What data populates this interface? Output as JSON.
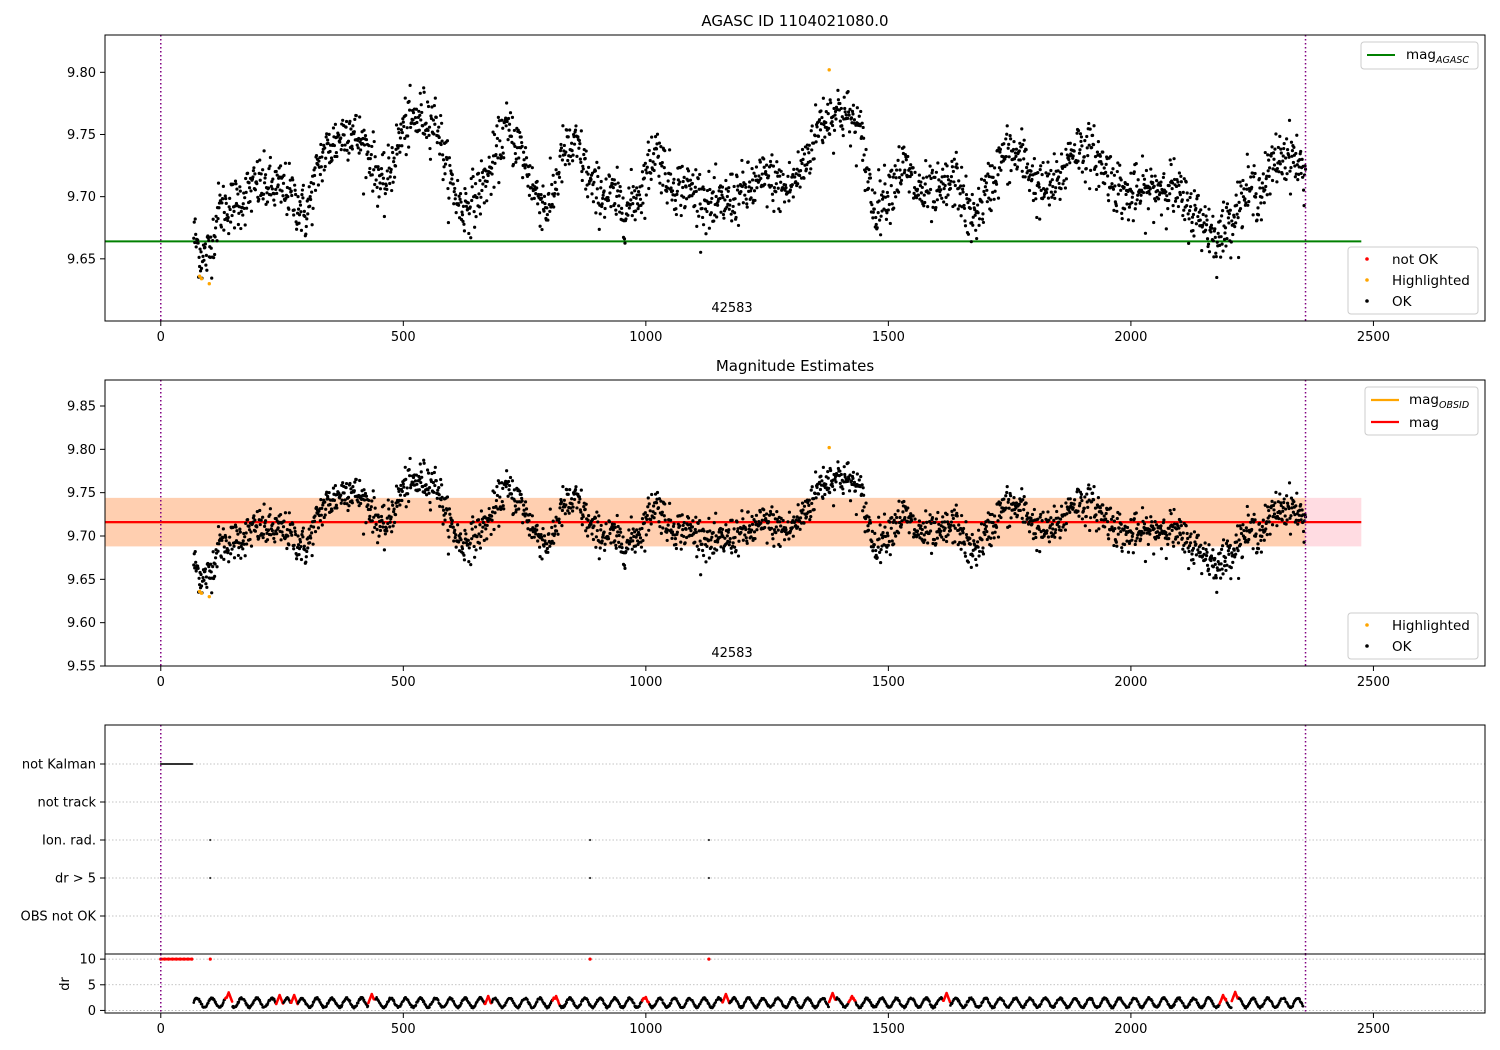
{
  "chart_data": [
    {
      "type": "scatter",
      "title": "AGASC ID 1104021080.0",
      "obsid_label": "42583",
      "xlim": [
        -115,
        2730
      ],
      "ylim": [
        9.6,
        9.83
      ],
      "xticks": [
        0,
        500,
        1000,
        1500,
        2000,
        2500
      ],
      "yticks": [
        9.65,
        9.7,
        9.75,
        9.8
      ],
      "ytick_labels": [
        "9.65",
        "9.70",
        "9.75",
        "9.80"
      ],
      "obs_boundaries": [
        0,
        2360
      ],
      "lines": [
        {
          "name": "mag_AGASC",
          "label_main": "mag",
          "label_sub": "AGASC",
          "y": 9.664,
          "x_range": [
            -115,
            2475
          ],
          "color": "#008000"
        }
      ],
      "series": [
        {
          "name": "not OK",
          "color": "#ff0000",
          "points": []
        },
        {
          "name": "Highlighted",
          "color": "#ffa500",
          "points": [
            [
              80,
              9.636
            ],
            [
              84,
              9.634
            ],
            [
              100,
              9.63
            ],
            [
              1378,
              9.802
            ]
          ]
        },
        {
          "name": "OK",
          "color": "#000000",
          "trend": [
            [
              68,
              9.67
            ],
            [
              85,
              9.65
            ],
            [
              100,
              9.655
            ],
            [
              120,
              9.69
            ],
            [
              160,
              9.695
            ],
            [
              200,
              9.71
            ],
            [
              260,
              9.705
            ],
            [
              300,
              9.685
            ],
            [
              330,
              9.73
            ],
            [
              360,
              9.745
            ],
            [
              390,
              9.755
            ],
            [
              430,
              9.735
            ],
            [
              460,
              9.705
            ],
            [
              500,
              9.755
            ],
            [
              540,
              9.765
            ],
            [
              570,
              9.76
            ],
            [
              590,
              9.72
            ],
            [
              620,
              9.69
            ],
            [
              650,
              9.7
            ],
            [
              680,
              9.72
            ],
            [
              710,
              9.755
            ],
            [
              740,
              9.74
            ],
            [
              770,
              9.705
            ],
            [
              800,
              9.69
            ],
            [
              830,
              9.735
            ],
            [
              860,
              9.74
            ],
            [
              890,
              9.705
            ],
            [
              930,
              9.7
            ],
            [
              960,
              9.69
            ],
            [
              990,
              9.705
            ],
            [
              1020,
              9.74
            ],
            [
              1050,
              9.71
            ],
            [
              1100,
              9.705
            ],
            [
              1140,
              9.69
            ],
            [
              1180,
              9.7
            ],
            [
              1210,
              9.705
            ],
            [
              1250,
              9.715
            ],
            [
              1290,
              9.705
            ],
            [
              1320,
              9.72
            ],
            [
              1360,
              9.76
            ],
            [
              1400,
              9.77
            ],
            [
              1440,
              9.755
            ],
            [
              1470,
              9.69
            ],
            [
              1500,
              9.705
            ],
            [
              1530,
              9.725
            ],
            [
              1560,
              9.705
            ],
            [
              1600,
              9.7
            ],
            [
              1640,
              9.715
            ],
            [
              1670,
              9.68
            ],
            [
              1700,
              9.7
            ],
            [
              1740,
              9.735
            ],
            [
              1780,
              9.73
            ],
            [
              1810,
              9.705
            ],
            [
              1850,
              9.71
            ],
            [
              1880,
              9.74
            ],
            [
              1920,
              9.735
            ],
            [
              1950,
              9.72
            ],
            [
              1990,
              9.7
            ],
            [
              2040,
              9.705
            ],
            [
              2080,
              9.71
            ],
            [
              2110,
              9.695
            ],
            [
              2150,
              9.68
            ],
            [
              2180,
              9.665
            ],
            [
              2210,
              9.685
            ],
            [
              2240,
              9.705
            ],
            [
              2270,
              9.705
            ],
            [
              2300,
              9.73
            ],
            [
              2330,
              9.735
            ],
            [
              2360,
              9.715
            ]
          ],
          "scatter": 0.018
        }
      ],
      "legend": {
        "lines_position": "top-right",
        "markers_position": "bottom-right"
      }
    },
    {
      "type": "scatter",
      "title": "Magnitude Estimates",
      "obsid_label": "42583",
      "xlim": [
        -115,
        2730
      ],
      "ylim": [
        9.55,
        9.88
      ],
      "xticks": [
        0,
        500,
        1000,
        1500,
        2000,
        2500
      ],
      "yticks": [
        9.55,
        9.6,
        9.65,
        9.7,
        9.75,
        9.8,
        9.85
      ],
      "ytick_labels": [
        "9.55",
        "9.60",
        "9.65",
        "9.70",
        "9.75",
        "9.80",
        "9.85"
      ],
      "obs_boundaries": [
        0,
        2360
      ],
      "lines": [
        {
          "name": "mag_OBSID",
          "label_main": "mag",
          "label_sub": "OBSID",
          "y": 9.716,
          "x_range": [
            -115,
            2360
          ],
          "band": [
            9.688,
            9.744
          ],
          "color": "#ffa500"
        },
        {
          "name": "mag",
          "label_main": "mag",
          "label_sub": "",
          "y": 9.716,
          "x_range": [
            -115,
            2475
          ],
          "band": [
            9.688,
            9.744
          ],
          "color": "#ff0000"
        }
      ],
      "series": [
        {
          "name": "Highlighted",
          "color": "#ffa500"
        },
        {
          "name": "OK",
          "color": "#000000"
        }
      ],
      "legend": {
        "lines_position": "top-right",
        "markers_position": "bottom-right"
      }
    },
    {
      "type": "scatter",
      "xlim": [
        -115,
        2730
      ],
      "categories": [
        "not Kalman",
        "not track",
        "Ion. rad.",
        "dr > 5",
        "OBS not OK"
      ],
      "flags": [
        {
          "category": "not Kalman",
          "x_range": [
            0,
            65
          ]
        },
        {
          "category": "Ion. rad.",
          "x": [
            102,
            885,
            1130
          ]
        },
        {
          "category": "dr > 5",
          "x": [
            102,
            885,
            1130
          ]
        }
      ],
      "obs_boundaries": [
        0,
        2360
      ]
    },
    {
      "type": "line",
      "ylabel": "dr",
      "xlim": [
        -115,
        2730
      ],
      "ylim": [
        -0.5,
        11
      ],
      "xticks": [
        0,
        500,
        1000,
        1500,
        2000,
        2500
      ],
      "yticks": [
        0,
        5,
        10
      ],
      "ytick_labels": [
        "0",
        "5",
        "10"
      ],
      "obs_boundaries": [
        0,
        2360
      ],
      "red_markers_at_10": [
        0,
        8,
        16,
        24,
        32,
        40,
        48,
        56,
        64,
        102,
        885,
        1130
      ],
      "dr_start": 68,
      "dr_end": 2355,
      "dr_typical": 1.5,
      "dr_red_excursions": [
        [
          140,
          3.5
        ],
        [
          245,
          3.0
        ],
        [
          275,
          3.0
        ],
        [
          435,
          3.2
        ],
        [
          675,
          2.8
        ],
        [
          815,
          2.8
        ],
        [
          1000,
          2.6
        ],
        [
          1165,
          3.2
        ],
        [
          1385,
          3.4
        ],
        [
          1425,
          2.8
        ],
        [
          1620,
          3.4
        ],
        [
          2190,
          3.0
        ],
        [
          2215,
          3.6
        ]
      ]
    }
  ]
}
